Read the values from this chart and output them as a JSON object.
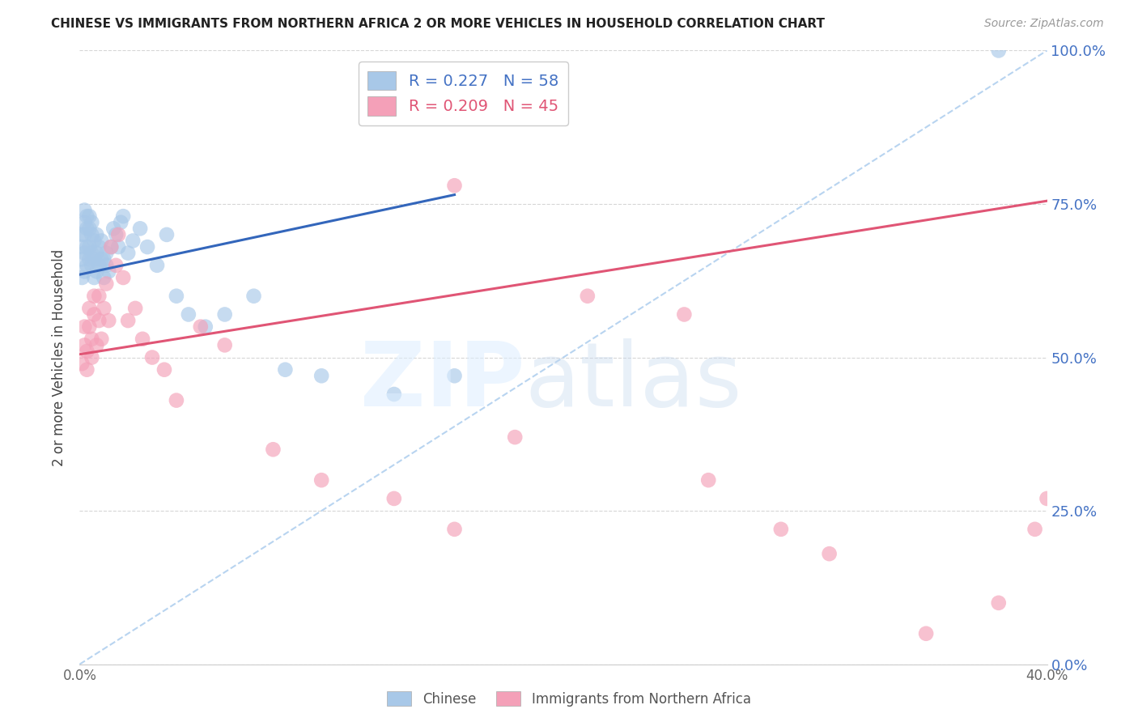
{
  "title": "CHINESE VS IMMIGRANTS FROM NORTHERN AFRICA 2 OR MORE VEHICLES IN HOUSEHOLD CORRELATION CHART",
  "source": "Source: ZipAtlas.com",
  "ylabel": "2 or more Vehicles in Household",
  "xmin": 0.0,
  "xmax": 0.4,
  "ymin": 0.0,
  "ymax": 1.0,
  "chinese_R": 0.227,
  "chinese_N": 58,
  "nafr_R": 0.209,
  "nafr_N": 45,
  "chinese_color": "#a8c8e8",
  "nafr_color": "#f4a0b8",
  "chinese_line_color": "#3366bb",
  "nafr_line_color": "#e05575",
  "diagonal_color": "#b8d4f0",
  "legend_label_chinese": "Chinese",
  "legend_label_nafr": "Immigrants from Northern Africa",
  "chinese_line_x0": 0.0,
  "chinese_line_y0": 0.635,
  "chinese_line_x1": 0.155,
  "chinese_line_y1": 0.765,
  "nafr_line_x0": 0.0,
  "nafr_line_y0": 0.505,
  "nafr_line_x1": 0.4,
  "nafr_line_y1": 0.755,
  "chinese_x": [
    0.001,
    0.001,
    0.001,
    0.001,
    0.002,
    0.002,
    0.002,
    0.002,
    0.002,
    0.003,
    0.003,
    0.003,
    0.003,
    0.004,
    0.004,
    0.004,
    0.004,
    0.005,
    0.005,
    0.005,
    0.005,
    0.006,
    0.006,
    0.006,
    0.007,
    0.007,
    0.007,
    0.008,
    0.008,
    0.009,
    0.009,
    0.01,
    0.01,
    0.011,
    0.011,
    0.012,
    0.013,
    0.014,
    0.015,
    0.016,
    0.017,
    0.018,
    0.02,
    0.022,
    0.025,
    0.028,
    0.032,
    0.036,
    0.04,
    0.045,
    0.052,
    0.06,
    0.072,
    0.085,
    0.1,
    0.13,
    0.155,
    0.38
  ],
  "chinese_y": [
    0.63,
    0.66,
    0.68,
    0.7,
    0.64,
    0.67,
    0.7,
    0.72,
    0.74,
    0.65,
    0.68,
    0.71,
    0.73,
    0.66,
    0.68,
    0.71,
    0.73,
    0.65,
    0.67,
    0.7,
    0.72,
    0.63,
    0.66,
    0.69,
    0.64,
    0.67,
    0.7,
    0.65,
    0.68,
    0.66,
    0.69,
    0.63,
    0.66,
    0.65,
    0.67,
    0.64,
    0.68,
    0.71,
    0.7,
    0.68,
    0.72,
    0.73,
    0.67,
    0.69,
    0.71,
    0.68,
    0.65,
    0.7,
    0.6,
    0.57,
    0.55,
    0.57,
    0.6,
    0.48,
    0.47,
    0.44,
    0.47,
    1.0
  ],
  "nafr_x": [
    0.001,
    0.002,
    0.002,
    0.003,
    0.003,
    0.004,
    0.004,
    0.005,
    0.005,
    0.006,
    0.006,
    0.007,
    0.008,
    0.008,
    0.009,
    0.01,
    0.011,
    0.012,
    0.013,
    0.015,
    0.016,
    0.018,
    0.02,
    0.023,
    0.026,
    0.03,
    0.035,
    0.04,
    0.05,
    0.06,
    0.08,
    0.1,
    0.13,
    0.155,
    0.18,
    0.21,
    0.25,
    0.155,
    0.26,
    0.29,
    0.31,
    0.35,
    0.38,
    0.395,
    0.4
  ],
  "nafr_y": [
    0.49,
    0.52,
    0.55,
    0.48,
    0.51,
    0.55,
    0.58,
    0.5,
    0.53,
    0.57,
    0.6,
    0.52,
    0.56,
    0.6,
    0.53,
    0.58,
    0.62,
    0.56,
    0.68,
    0.65,
    0.7,
    0.63,
    0.56,
    0.58,
    0.53,
    0.5,
    0.48,
    0.43,
    0.55,
    0.52,
    0.35,
    0.3,
    0.27,
    0.22,
    0.37,
    0.6,
    0.57,
    0.78,
    0.3,
    0.22,
    0.18,
    0.05,
    0.1,
    0.22,
    0.27
  ]
}
